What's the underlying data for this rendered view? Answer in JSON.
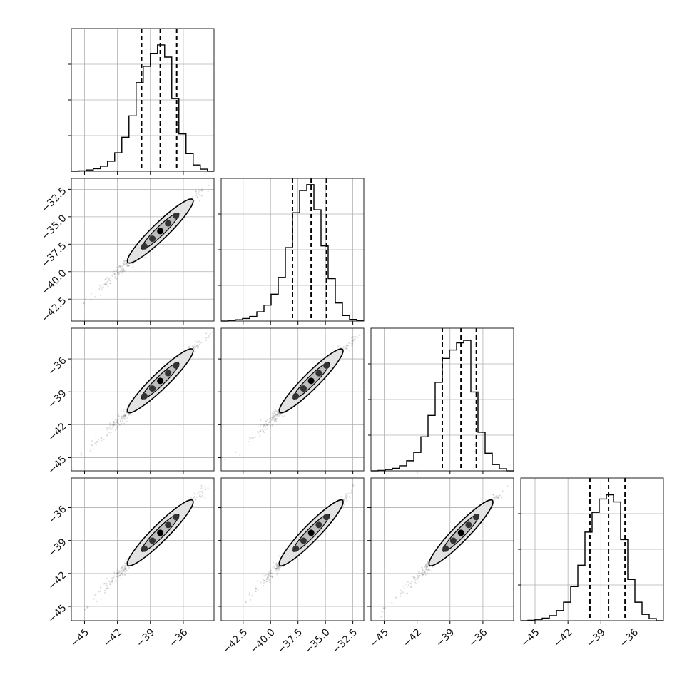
{
  "chart_data": {
    "type": "corner",
    "n_params": 4,
    "grid": true,
    "params": [
      {
        "range": [
          -46.2,
          -33.2
        ],
        "ticks": [
          -45,
          -42,
          -39,
          -36
        ],
        "tick_labels": [
          "−45",
          "−42",
          "−39",
          "−36"
        ],
        "quantiles": [
          -39.8,
          -38.1,
          -36.6
        ],
        "hist_bin_edges": [
          -46.2,
          -45.5,
          -44.85,
          -44.2,
          -43.55,
          -42.9,
          -42.25,
          -41.6,
          -40.95,
          -40.3,
          -39.65,
          -39.0,
          -38.35,
          -37.7,
          -37.05,
          -36.4,
          -35.75,
          -35.1,
          -34.45,
          -33.8,
          -33.2
        ],
        "hist_counts": [
          0,
          1,
          3,
          6,
          12,
          24,
          44,
          81,
          132,
          211,
          250,
          281,
          301,
          272,
          173,
          89,
          42,
          15,
          5,
          0
        ]
      },
      {
        "range": [
          -44.5,
          -31.5
        ],
        "ticks": [
          -42.5,
          -40.0,
          -37.5,
          -35.0,
          -32.5
        ],
        "tick_labels": [
          "−42.5",
          "−40.0",
          "−37.5",
          "−35.0",
          "−32.5"
        ],
        "quantiles": [
          -38.0,
          -36.3,
          -34.9
        ],
        "hist_bin_edges": [
          -44.5,
          -43.85,
          -43.2,
          -42.55,
          -41.9,
          -41.25,
          -40.6,
          -39.95,
          -39.3,
          -38.65,
          -38.0,
          -37.35,
          -36.7,
          -36.05,
          -35.4,
          -34.75,
          -34.1,
          -33.45,
          -32.8,
          -32.15,
          -31.5
        ],
        "hist_counts": [
          0,
          1,
          3,
          6,
          11,
          22,
          38,
          64,
          104,
          175,
          258,
          311,
          325,
          265,
          179,
          101,
          43,
          13,
          4,
          1
        ]
      },
      {
        "range": [
          -46.2,
          -33.2
        ],
        "ticks": [
          -45,
          -42,
          -39,
          -36
        ],
        "tick_labels": [
          "−45",
          "−42",
          "−39",
          "−36"
        ],
        "quantiles": [
          -39.7,
          -38.0,
          -36.6
        ],
        "hist_bin_edges": [
          -46.2,
          -45.55,
          -44.9,
          -44.25,
          -43.6,
          -42.95,
          -42.3,
          -41.65,
          -41.0,
          -40.35,
          -39.7,
          -39.05,
          -38.4,
          -37.75,
          -37.1,
          -36.45,
          -35.8,
          -35.15,
          -34.5,
          -33.85,
          -33.2
        ],
        "hist_counts": [
          0,
          1,
          3,
          6,
          12,
          24,
          44,
          81,
          132,
          211,
          268,
          288,
          305,
          311,
          188,
          92,
          42,
          15,
          5,
          0
        ]
      },
      {
        "range": [
          -46.3,
          -33.3
        ],
        "ticks": [
          -45,
          -42,
          -39,
          -36
        ],
        "tick_labels": [
          "−45",
          "−42",
          "−39",
          "−36"
        ],
        "quantiles": [
          -40.0,
          -38.3,
          -36.8
        ],
        "hist_bin_edges": [
          -46.3,
          -45.65,
          -45.0,
          -44.35,
          -43.7,
          -43.05,
          -42.4,
          -41.75,
          -41.1,
          -40.45,
          -39.8,
          -39.15,
          -38.5,
          -37.85,
          -37.2,
          -36.55,
          -35.9,
          -35.25,
          -34.6,
          -33.95,
          -33.3
        ],
        "hist_counts": [
          0,
          1,
          3,
          6,
          12,
          24,
          44,
          81,
          132,
          211,
          258,
          290,
          300,
          283,
          193,
          98,
          44,
          15,
          5,
          0
        ]
      }
    ],
    "histogram_ylim": [
      0,
      340
    ],
    "correlation": 0.985,
    "scatter_n": 900,
    "contour_levels": [
      0.39,
      0.86
    ]
  }
}
